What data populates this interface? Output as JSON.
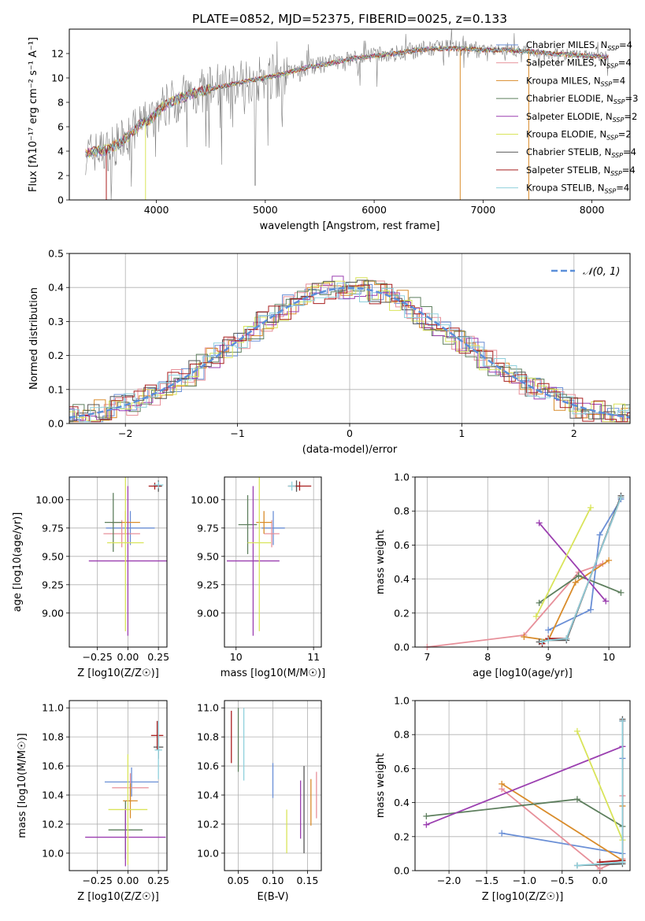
{
  "figure": {
    "title": "PLATE=0852, MJD=52375, FIBERID=0025, z=0.133"
  },
  "models": [
    {
      "name": "Chabrier MILES",
      "nssp": "4",
      "color": "#6a8fd6"
    },
    {
      "name": "Salpeter MILES",
      "nssp": "4",
      "color": "#e7909a"
    },
    {
      "name": "Kroupa MILES",
      "nssp": "4",
      "color": "#d98c2b"
    },
    {
      "name": "Chabrier ELODIE",
      "nssp": "3",
      "color": "#5e7f5e"
    },
    {
      "name": "Salpeter ELODIE",
      "nssp": "2",
      "color": "#9b3fb0"
    },
    {
      "name": "Kroupa ELODIE",
      "nssp": "2",
      "color": "#d9e45a"
    },
    {
      "name": "Chabrier STELIB",
      "nssp": "4",
      "color": "#555555"
    },
    {
      "name": "Salpeter STELIB",
      "nssp": "4",
      "color": "#a81e1e"
    },
    {
      "name": "Kroupa STELIB",
      "nssp": "4",
      "color": "#8fd0dc"
    }
  ],
  "chart_data": [
    {
      "id": "spectrum",
      "type": "line",
      "xlabel": "wavelength [Angstrom, rest frame]",
      "ylabel": "Flux [fλ10⁻¹⁷ erg cm⁻² s⁻¹ A⁻¹]",
      "xlim": [
        3200,
        8350
      ],
      "ylim": [
        0,
        14
      ],
      "xticks": [
        4000,
        5000,
        6000,
        7000,
        8000
      ],
      "yticks": [
        0,
        2,
        4,
        6,
        8,
        10,
        12
      ],
      "grid": false,
      "legend": "top-right",
      "data_color": "#808080",
      "continuum": {
        "x": [
          3350,
          3450,
          3550,
          3650,
          3750,
          3850,
          3950,
          4050,
          4200,
          4400,
          4600,
          4800,
          5000,
          5200,
          5400,
          5600,
          5800,
          6000,
          6200,
          6400,
          6600,
          6800,
          7000,
          7200,
          7400,
          7600,
          7800,
          8000,
          8150
        ],
        "y": [
          3.8,
          4.0,
          4.1,
          4.6,
          5.3,
          6.2,
          6.6,
          7.6,
          8.3,
          8.9,
          9.3,
          9.7,
          10.0,
          10.4,
          10.9,
          11.2,
          11.6,
          11.8,
          12.0,
          12.3,
          12.4,
          12.4,
          12.3,
          12.3,
          12.2,
          12.0,
          11.9,
          11.8,
          11.7
        ]
      }
    },
    {
      "id": "residuals",
      "type": "bar",
      "xlabel": "(data-model)/error",
      "ylabel": "Normed distribution",
      "xlim": [
        -2.5,
        2.5
      ],
      "ylim": [
        0,
        0.5
      ],
      "xticks": [
        -2,
        -1,
        0,
        1,
        2
      ],
      "yticks": [
        0.0,
        0.1,
        0.2,
        0.3,
        0.4,
        0.5
      ],
      "grid": true,
      "legend": "top-right",
      "gaussian_label": "𝒩(0, 1)"
    },
    {
      "id": "age_vs_Z",
      "type": "scatter",
      "xlabel": "Z [log10(Z/Z☉)]",
      "ylabel": "age  [log10(age/yr)]",
      "xlim": [
        -0.48,
        0.32
      ],
      "ylim": [
        8.7,
        10.2
      ],
      "xticks": [
        -0.25,
        0.0,
        0.25
      ],
      "yticks": [
        9.0,
        9.25,
        9.5,
        9.75,
        10.0
      ],
      "grid": true,
      "points": [
        {
          "m": 0,
          "x": 0.02,
          "y": 9.75,
          "xerr": 0.2,
          "yerr": 0.15
        },
        {
          "m": 1,
          "x": -0.05,
          "y": 9.7,
          "xerr": 0.15,
          "yerr": 0.12
        },
        {
          "m": 2,
          "x": -0.02,
          "y": 9.8,
          "xerr": 0.12,
          "yerr": 0.1
        },
        {
          "m": 3,
          "x": -0.12,
          "y": 9.8,
          "xerr": 0.07,
          "yerr": 0.26
        },
        {
          "m": 4,
          "x": 0.0,
          "y": 9.46,
          "xerr": 0.32,
          "yerr": 0.66
        },
        {
          "m": 5,
          "x": -0.02,
          "y": 9.62,
          "xerr": 0.15,
          "yerr": 0.78
        },
        {
          "m": 6,
          "x": 0.25,
          "y": 10.12,
          "xerr": 0.03,
          "yerr": 0.05
        },
        {
          "m": 7,
          "x": 0.22,
          "y": 10.12,
          "xerr": 0.05,
          "yerr": 0.03
        },
        {
          "m": 8,
          "x": 0.25,
          "y": 10.13,
          "xerr": 0.04,
          "yerr": 0.03
        }
      ]
    },
    {
      "id": "age_vs_mass",
      "type": "scatter",
      "xlabel": "mass [log10(M/M☉)]",
      "ylabel": "",
      "xlim": [
        9.85,
        11.1
      ],
      "ylim": [
        8.7,
        10.2
      ],
      "xticks": [
        10,
        11
      ],
      "yticks": [
        9.0,
        9.25,
        9.5,
        9.75,
        10.0
      ],
      "grid": true,
      "points": [
        {
          "m": 0,
          "x": 10.48,
          "y": 9.75,
          "xerr": 0.15,
          "yerr": 0.15
        },
        {
          "m": 1,
          "x": 10.46,
          "y": 9.7,
          "xerr": 0.1,
          "yerr": 0.12
        },
        {
          "m": 2,
          "x": 10.36,
          "y": 9.8,
          "xerr": 0.1,
          "yerr": 0.1
        },
        {
          "m": 3,
          "x": 10.15,
          "y": 9.78,
          "xerr": 0.12,
          "yerr": 0.26
        },
        {
          "m": 4,
          "x": 10.22,
          "y": 9.46,
          "xerr": 0.34,
          "yerr": 0.66
        },
        {
          "m": 5,
          "x": 10.3,
          "y": 9.62,
          "xerr": 0.15,
          "yerr": 0.78
        },
        {
          "m": 6,
          "x": 10.78,
          "y": 10.12,
          "xerr": 0.04,
          "yerr": 0.05
        },
        {
          "m": 7,
          "x": 10.82,
          "y": 10.12,
          "xerr": 0.15,
          "yerr": 0.04
        },
        {
          "m": 8,
          "x": 10.72,
          "y": 10.12,
          "xerr": 0.05,
          "yerr": 0.04
        }
      ]
    },
    {
      "id": "weight_vs_age",
      "type": "line",
      "xlabel": "age  [log10(age/yr)]",
      "ylabel": "mass weight",
      "xlim": [
        6.8,
        10.35
      ],
      "ylim": [
        0,
        1
      ],
      "xticks": [
        7,
        8,
        9,
        10
      ],
      "yticks": [
        0.0,
        0.2,
        0.4,
        0.6,
        0.8,
        1.0
      ],
      "grid": true,
      "series": [
        {
          "m": 0,
          "x": [
            9.0,
            9.7,
            9.85,
            10.2
          ],
          "y": [
            0.1,
            0.22,
            0.66,
            0.87
          ]
        },
        {
          "m": 1,
          "x": [
            7.0,
            8.6,
            9.5,
            9.9
          ],
          "y": [
            0.0,
            0.07,
            0.44,
            0.49
          ]
        },
        {
          "m": 2,
          "x": [
            8.6,
            9.0,
            9.45,
            10.0
          ],
          "y": [
            0.06,
            0.04,
            0.38,
            0.51
          ]
        },
        {
          "m": 3,
          "x": [
            8.85,
            9.5,
            10.2
          ],
          "y": [
            0.26,
            0.42,
            0.32
          ]
        },
        {
          "m": 4,
          "x": [
            8.85,
            9.95
          ],
          "y": [
            0.73,
            0.27
          ]
        },
        {
          "m": 5,
          "x": [
            8.8,
            9.7
          ],
          "y": [
            0.18,
            0.82
          ]
        },
        {
          "m": 6,
          "x": [
            8.85,
            9.0,
            9.3,
            10.2
          ],
          "y": [
            0.03,
            0.04,
            0.04,
            0.89
          ]
        },
        {
          "m": 7,
          "x": [
            8.9,
            9.0,
            9.3,
            10.2
          ],
          "y": [
            0.02,
            0.05,
            0.05,
            0.88
          ]
        },
        {
          "m": 8,
          "x": [
            8.9,
            9.0,
            9.3,
            10.2
          ],
          "y": [
            0.03,
            0.04,
            0.05,
            0.88
          ]
        }
      ]
    },
    {
      "id": "mass_vs_Z",
      "type": "scatter",
      "xlabel": "Z [log10(Z/Z☉)]",
      "ylabel": "mass [log10(M/M☉)]",
      "xlim": [
        -0.48,
        0.32
      ],
      "ylim": [
        9.88,
        11.05
      ],
      "xticks": [
        -0.25,
        0.0,
        0.25
      ],
      "yticks": [
        10.0,
        10.2,
        10.4,
        10.6,
        10.8,
        11.0
      ],
      "grid": true,
      "points": [
        {
          "m": 0,
          "x": 0.03,
          "y": 10.49,
          "xerr": 0.22,
          "yerr": 0.1
        },
        {
          "m": 1,
          "x": 0.02,
          "y": 10.45,
          "xerr": 0.15,
          "yerr": 0.1
        },
        {
          "m": 2,
          "x": 0.02,
          "y": 10.36,
          "xerr": 0.06,
          "yerr": 0.12
        },
        {
          "m": 3,
          "x": -0.02,
          "y": 10.16,
          "xerr": 0.14,
          "yerr": 0.2
        },
        {
          "m": 4,
          "x": -0.02,
          "y": 10.11,
          "xerr": 0.33,
          "yerr": 0.2
        },
        {
          "m": 5,
          "x": 0.0,
          "y": 10.3,
          "xerr": 0.16,
          "yerr": 0.38
        },
        {
          "m": 6,
          "x": 0.25,
          "y": 10.73,
          "xerr": 0.04,
          "yerr": 0.08
        },
        {
          "m": 7,
          "x": 0.24,
          "y": 10.81,
          "xerr": 0.05,
          "yerr": 0.1
        },
        {
          "m": 8,
          "x": 0.25,
          "y": 10.71,
          "xerr": 0.03,
          "yerr": 0.2
        }
      ]
    },
    {
      "id": "mass_vs_ebv",
      "type": "scatter",
      "xlabel": "E(B-V)",
      "ylabel": "",
      "xlim": [
        0.03,
        0.17
      ],
      "ylim": [
        9.88,
        11.05
      ],
      "xticks": [
        0.05,
        0.1,
        0.15
      ],
      "yticks": [
        10.0,
        10.2,
        10.4,
        10.6,
        10.8,
        11.0
      ],
      "grid": true,
      "points": [
        {
          "m": 0,
          "x": 0.1,
          "y": 10.5,
          "xerr": 0,
          "yerr": 0.12
        },
        {
          "m": 1,
          "x": 0.163,
          "y": 10.4,
          "xerr": 0,
          "yerr": 0.16
        },
        {
          "m": 2,
          "x": 0.155,
          "y": 10.35,
          "xerr": 0,
          "yerr": 0.16
        },
        {
          "m": 3,
          "x": 0.05,
          "y": 10.78,
          "xerr": 0,
          "yerr": 0.22
        },
        {
          "m": 4,
          "x": 0.14,
          "y": 10.3,
          "xerr": 0,
          "yerr": 0.2
        },
        {
          "m": 5,
          "x": 0.12,
          "y": 10.15,
          "xerr": 0,
          "yerr": 0.15
        },
        {
          "m": 6,
          "x": 0.145,
          "y": 10.3,
          "xerr": 0,
          "yerr": 0.3
        },
        {
          "m": 7,
          "x": 0.04,
          "y": 10.8,
          "xerr": 0,
          "yerr": 0.18
        },
        {
          "m": 8,
          "x": 0.058,
          "y": 10.75,
          "xerr": 0,
          "yerr": 0.25
        }
      ]
    },
    {
      "id": "weight_vs_Z",
      "type": "line",
      "xlabel": "Z [log10(Z/Z☉)]",
      "ylabel": "mass weight",
      "xlim": [
        -2.45,
        0.4
      ],
      "ylim": [
        0,
        1
      ],
      "xticks": [
        -2.0,
        -1.5,
        -1.0,
        -0.5,
        0.0
      ],
      "yticks": [
        0.0,
        0.2,
        0.4,
        0.6,
        0.8,
        1.0
      ],
      "grid": true,
      "series": [
        {
          "m": 0,
          "x": [
            -1.3,
            0.3,
            0.3,
            0.3
          ],
          "y": [
            0.22,
            0.1,
            0.66,
            0.88
          ]
        },
        {
          "m": 1,
          "x": [
            -1.3,
            0.0,
            0.3,
            0.3
          ],
          "y": [
            0.48,
            0.01,
            0.07,
            0.44
          ]
        },
        {
          "m": 2,
          "x": [
            -1.3,
            0.3,
            0.3
          ],
          "y": [
            0.51,
            0.06,
            0.38
          ]
        },
        {
          "m": 3,
          "x": [
            -2.3,
            -0.3,
            0.3
          ],
          "y": [
            0.32,
            0.42,
            0.26
          ]
        },
        {
          "m": 4,
          "x": [
            -2.3,
            0.3
          ],
          "y": [
            0.27,
            0.73
          ]
        },
        {
          "m": 5,
          "x": [
            -0.3,
            0.3
          ],
          "y": [
            0.82,
            0.18
          ]
        },
        {
          "m": 6,
          "x": [
            -0.3,
            0.3,
            0.3,
            0.3
          ],
          "y": [
            0.03,
            0.04,
            0.05,
            0.89
          ]
        },
        {
          "m": 7,
          "x": [
            0.0,
            0.3,
            0.3
          ],
          "y": [
            0.05,
            0.06,
            0.88
          ]
        },
        {
          "m": 8,
          "x": [
            -0.3,
            0.3,
            0.3
          ],
          "y": [
            0.03,
            0.05,
            0.88
          ]
        }
      ]
    }
  ]
}
